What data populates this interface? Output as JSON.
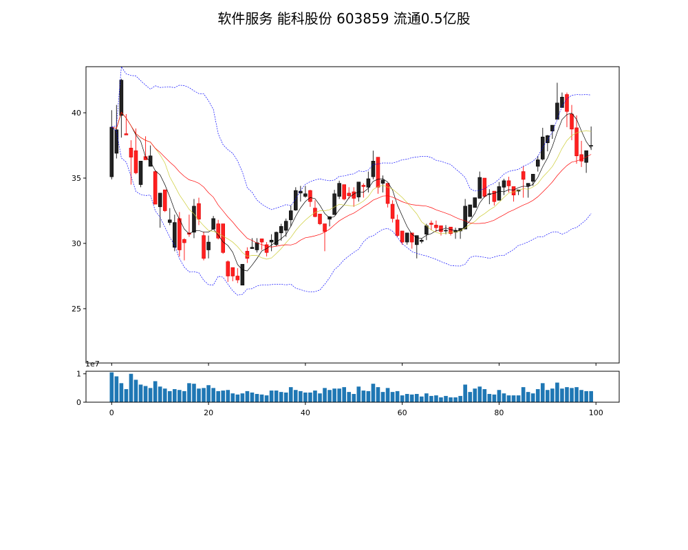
{
  "chart_data": {
    "type": "candlestick",
    "title": "软件服务 能科股份 603859 流通0.5亿股",
    "x": "index 0-99",
    "xlim": [
      -5.3,
      104.8
    ],
    "xticks": [
      0,
      20,
      40,
      60,
      80,
      100
    ],
    "price_axis": {
      "ylim": [
        20.84,
        43.53
      ],
      "yticks": [
        25,
        30,
        35,
        40
      ]
    },
    "volume_axis": {
      "ylim": [
        0,
        1.09
      ],
      "yticks": [
        0,
        1
      ],
      "offset_label": "1e7"
    },
    "grid": false,
    "candle_format": [
      "open",
      "high",
      "low",
      "close"
    ],
    "candles": [
      [
        35.1,
        40.2,
        34.9,
        38.9
      ],
      [
        36.9,
        40.6,
        36.5,
        38.7
      ],
      [
        39.8,
        42.6,
        38.1,
        42.5
      ],
      [
        38.4,
        39.9,
        38.3,
        38.3
      ],
      [
        37.3,
        37.9,
        34.5,
        36.6
      ],
      [
        37.1,
        38.8,
        35.3,
        35.4
      ],
      [
        34.5,
        36.3,
        34.3,
        36.3
      ],
      [
        36.65,
        38.2,
        36.4,
        36.4
      ],
      [
        35.9,
        37.5,
        35.9,
        36.7
      ],
      [
        35.5,
        35.6,
        33.0,
        33.0
      ],
      [
        32.8,
        33.85,
        31.2,
        33.85
      ],
      [
        34.1,
        34.1,
        32.4,
        32.5
      ],
      [
        31.6,
        32.7,
        31.4,
        31.8
      ],
      [
        29.7,
        32.2,
        29.4,
        31.6
      ],
      [
        31.9,
        32.4,
        29.0,
        29.5
      ],
      [
        30.3,
        30.4,
        28.7,
        30.05
      ],
      [
        30.8,
        32.2,
        30.5,
        30.7
      ],
      [
        30.85,
        33.4,
        30.4,
        32.85
      ],
      [
        33.05,
        33.5,
        31.4,
        31.85
      ],
      [
        30.6,
        30.9,
        28.7,
        28.85
      ],
      [
        29.5,
        30.6,
        28.85,
        30.1
      ],
      [
        31.1,
        32.1,
        31.1,
        31.9
      ],
      [
        31.5,
        31.8,
        30.3,
        30.4
      ],
      [
        31.5,
        31.5,
        29.2,
        29.3
      ],
      [
        28.6,
        28.7,
        27.05,
        27.5
      ],
      [
        28.15,
        28.15,
        27.1,
        27.5
      ],
      [
        27.5,
        28.1,
        26.96,
        27.2
      ],
      [
        26.8,
        28.4,
        26.8,
        28.4
      ],
      [
        29.4,
        29.7,
        28.5,
        28.85
      ],
      [
        29.6,
        30.4,
        29.6,
        29.7
      ],
      [
        29.5,
        30.4,
        29.3,
        30.05
      ],
      [
        30.35,
        30.35,
        29.5,
        30.1
      ],
      [
        29.9,
        30.1,
        29.0,
        29.3
      ],
      [
        30.1,
        30.7,
        29.4,
        30.25
      ],
      [
        29.9,
        30.9,
        29.8,
        30.85
      ],
      [
        30.8,
        31.5,
        30.2,
        31.3
      ],
      [
        31.0,
        31.9,
        30.5,
        31.7
      ],
      [
        31.8,
        32.9,
        31.3,
        32.5
      ],
      [
        32.55,
        34.3,
        32.5,
        34.05
      ],
      [
        33.85,
        34.4,
        33.2,
        34.0
      ],
      [
        33.6,
        34.4,
        33.5,
        33.8
      ],
      [
        34.05,
        34.1,
        32.8,
        33.2
      ],
      [
        32.7,
        33.3,
        32.0,
        32.05
      ],
      [
        32.25,
        32.25,
        31.4,
        31.5
      ],
      [
        31.5,
        31.5,
        29.4,
        30.9
      ],
      [
        31.85,
        32.05,
        31.3,
        32.05
      ],
      [
        32.2,
        34.1,
        32.2,
        33.8
      ],
      [
        33.6,
        34.8,
        33.4,
        34.6
      ],
      [
        34.5,
        34.5,
        33.3,
        33.4
      ],
      [
        33.85,
        34.3,
        33.4,
        33.65
      ],
      [
        33.95,
        34.3,
        32.8,
        33.45
      ],
      [
        33.55,
        34.7,
        33.2,
        34.7
      ],
      [
        34.45,
        34.6,
        33.5,
        34.35
      ],
      [
        34.3,
        35.5,
        33.9,
        34.95
      ],
      [
        35.1,
        37.1,
        34.9,
        36.3
      ],
      [
        36.6,
        36.6,
        33.8,
        34.3
      ],
      [
        34.6,
        35.2,
        33.9,
        34.85
      ],
      [
        34.6,
        34.6,
        32.75,
        33.05
      ],
      [
        33.0,
        33.3,
        31.6,
        31.9
      ],
      [
        31.8,
        32.2,
        30.5,
        30.6
      ],
      [
        30.95,
        30.95,
        29.9,
        30.1
      ],
      [
        30.1,
        30.8,
        29.9,
        30.8
      ],
      [
        30.8,
        30.8,
        29.6,
        30.1
      ],
      [
        29.9,
        30.6,
        28.85,
        30.6
      ],
      [
        30.15,
        30.4,
        30.0,
        30.25
      ],
      [
        30.7,
        31.5,
        30.25,
        31.35
      ],
      [
        31.55,
        31.75,
        31.0,
        31.45
      ],
      [
        31.4,
        31.75,
        30.9,
        31.2
      ],
      [
        31.35,
        31.35,
        30.6,
        30.9
      ],
      [
        30.95,
        31.4,
        30.7,
        31.0
      ],
      [
        31.25,
        31.25,
        30.6,
        30.75
      ],
      [
        30.85,
        31.2,
        30.35,
        31.0
      ],
      [
        30.95,
        31.15,
        30.35,
        31.15
      ],
      [
        31.1,
        33.4,
        31.1,
        32.85
      ],
      [
        32.05,
        32.95,
        32.05,
        32.95
      ],
      [
        32.75,
        33.5,
        32.75,
        33.5
      ],
      [
        33.45,
        35.5,
        33.45,
        35.05
      ],
      [
        35.0,
        35.0,
        33.5,
        33.6
      ],
      [
        33.75,
        34.15,
        33.0,
        33.8
      ],
      [
        34.0,
        34.0,
        32.9,
        33.2
      ],
      [
        33.3,
        34.7,
        33.3,
        34.35
      ],
      [
        34.3,
        34.95,
        33.7,
        34.8
      ],
      [
        34.8,
        35.1,
        33.9,
        34.4
      ],
      [
        34.35,
        34.35,
        33.2,
        33.7
      ],
      [
        34.0,
        34.1,
        33.7,
        34.1
      ],
      [
        35.5,
        35.9,
        33.5,
        34.9
      ],
      [
        34.4,
        34.6,
        33.5,
        34.6
      ],
      [
        34.75,
        35.3,
        34.4,
        35.3
      ],
      [
        35.9,
        36.7,
        35.5,
        36.4
      ],
      [
        36.45,
        38.85,
        36.35,
        38.15
      ],
      [
        37.7,
        38.3,
        37.05,
        38.25
      ],
      [
        38.6,
        39.05,
        38.0,
        39.05
      ],
      [
        39.5,
        42.3,
        39.5,
        40.75
      ],
      [
        40.4,
        41.55,
        40.4,
        41.2
      ],
      [
        41.4,
        41.55,
        38.9,
        40.1
      ],
      [
        39.9,
        40.6,
        37.9,
        38.75
      ],
      [
        38.85,
        39.8,
        36.1,
        36.7
      ],
      [
        36.8,
        37.85,
        35.85,
        36.3
      ],
      [
        36.2,
        37.1,
        35.4,
        37.1
      ],
      [
        37.45,
        38.95,
        37.15,
        37.5
      ]
    ],
    "volume_unit": "1e7",
    "volume": [
      1.05,
      0.91,
      0.67,
      0.46,
      1.0,
      0.79,
      0.62,
      0.57,
      0.5,
      0.74,
      0.55,
      0.48,
      0.39,
      0.46,
      0.43,
      0.39,
      0.67,
      0.65,
      0.48,
      0.5,
      0.6,
      0.5,
      0.39,
      0.41,
      0.43,
      0.31,
      0.27,
      0.31,
      0.39,
      0.34,
      0.29,
      0.27,
      0.24,
      0.41,
      0.41,
      0.36,
      0.34,
      0.53,
      0.43,
      0.39,
      0.34,
      0.34,
      0.41,
      0.31,
      0.5,
      0.43,
      0.48,
      0.48,
      0.53,
      0.36,
      0.29,
      0.55,
      0.41,
      0.39,
      0.65,
      0.53,
      0.36,
      0.5,
      0.36,
      0.39,
      0.24,
      0.29,
      0.27,
      0.29,
      0.2,
      0.31,
      0.22,
      0.24,
      0.17,
      0.22,
      0.17,
      0.17,
      0.22,
      0.62,
      0.36,
      0.48,
      0.55,
      0.46,
      0.29,
      0.27,
      0.43,
      0.31,
      0.24,
      0.24,
      0.24,
      0.53,
      0.36,
      0.31,
      0.46,
      0.67,
      0.43,
      0.48,
      0.69,
      0.48,
      0.53,
      0.5,
      0.53,
      0.43,
      0.39,
      0.39
    ],
    "overlays": [
      {
        "type": "ma",
        "period": 5,
        "color": "#000000"
      },
      {
        "type": "ma",
        "period": 10,
        "color": "#cccc33"
      },
      {
        "type": "ma",
        "period": 20,
        "color": "#ff0000"
      },
      {
        "type": "bollinger-upper",
        "period": 20,
        "k": 2,
        "color": "#0000ff",
        "style": "dashed"
      },
      {
        "type": "bollinger-lower",
        "period": 20,
        "k": 2,
        "color": "#0000ff",
        "style": "dashed"
      }
    ],
    "colors": {
      "up": "#222222",
      "down": "#ff2020",
      "volume": "#1f77b4"
    }
  }
}
